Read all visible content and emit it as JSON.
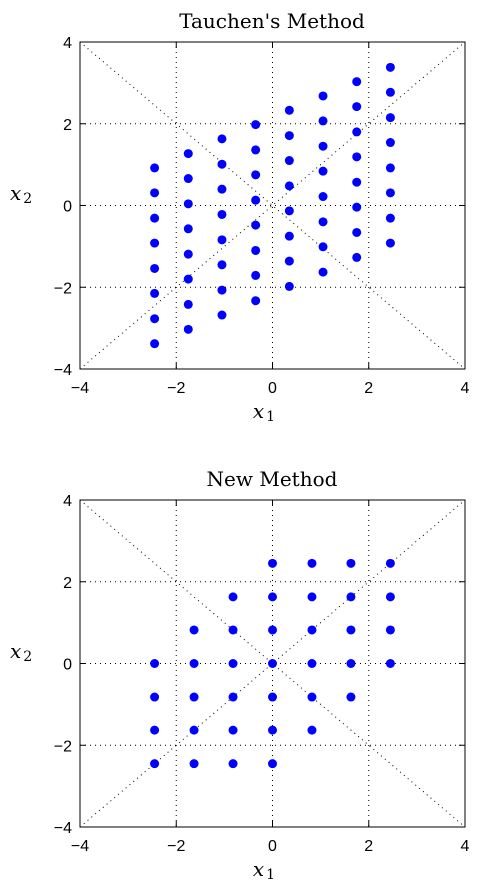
{
  "chart_data": [
    {
      "type": "scatter",
      "title": "Tauchen's Method",
      "xlabel": "x",
      "xlabel_sub": "1",
      "ylabel": "x",
      "ylabel_sub": "2",
      "xlim": [
        -4,
        4
      ],
      "ylim": [
        -4,
        4
      ],
      "xticks": [
        "−4",
        "−2",
        "0",
        "2",
        "4"
      ],
      "yticks": [
        "−4",
        "−2",
        "0",
        "2",
        "4"
      ],
      "grid": true,
      "color": "#0000ff",
      "diagonals": true,
      "points": [
        [
          -2.45,
          0.92
        ],
        [
          -2.45,
          0.31
        ],
        [
          -2.45,
          -0.31
        ],
        [
          -2.45,
          -0.92
        ],
        [
          -2.45,
          -1.54
        ],
        [
          -2.45,
          -2.15
        ],
        [
          -2.45,
          -2.77
        ],
        [
          -2.45,
          -3.38
        ],
        [
          -1.75,
          1.27
        ],
        [
          -1.75,
          0.66
        ],
        [
          -1.75,
          0.04
        ],
        [
          -1.75,
          -0.57
        ],
        [
          -1.75,
          -1.19
        ],
        [
          -1.75,
          -1.8
        ],
        [
          -1.75,
          -2.42
        ],
        [
          -1.75,
          -3.03
        ],
        [
          -1.05,
          1.63
        ],
        [
          -1.05,
          1.01
        ],
        [
          -1.05,
          0.4
        ],
        [
          -1.05,
          -0.22
        ],
        [
          -1.05,
          -0.84
        ],
        [
          -1.05,
          -1.45
        ],
        [
          -1.05,
          -2.07
        ],
        [
          -1.05,
          -2.68
        ],
        [
          -0.35,
          1.98
        ],
        [
          -0.35,
          1.36
        ],
        [
          -0.35,
          0.75
        ],
        [
          -0.35,
          0.13
        ],
        [
          -0.35,
          -0.48
        ],
        [
          -0.35,
          -1.1
        ],
        [
          -0.35,
          -1.71
        ],
        [
          -0.35,
          -2.33
        ],
        [
          0.35,
          2.33
        ],
        [
          0.35,
          1.71
        ],
        [
          0.35,
          1.1
        ],
        [
          0.35,
          0.48
        ],
        [
          0.35,
          -0.13
        ],
        [
          0.35,
          -0.75
        ],
        [
          0.35,
          -1.36
        ],
        [
          0.35,
          -1.98
        ],
        [
          1.05,
          2.68
        ],
        [
          1.05,
          2.07
        ],
        [
          1.05,
          1.45
        ],
        [
          1.05,
          0.84
        ],
        [
          1.05,
          0.22
        ],
        [
          1.05,
          -0.4
        ],
        [
          1.05,
          -1.01
        ],
        [
          1.05,
          -1.63
        ],
        [
          1.75,
          3.03
        ],
        [
          1.75,
          2.42
        ],
        [
          1.75,
          1.8
        ],
        [
          1.75,
          1.19
        ],
        [
          1.75,
          0.57
        ],
        [
          1.75,
          -0.04
        ],
        [
          1.75,
          -0.66
        ],
        [
          1.75,
          -1.27
        ],
        [
          2.45,
          3.38
        ],
        [
          2.45,
          2.77
        ],
        [
          2.45,
          2.15
        ],
        [
          2.45,
          1.54
        ],
        [
          2.45,
          0.92
        ],
        [
          2.45,
          0.31
        ],
        [
          2.45,
          -0.31
        ],
        [
          2.45,
          -0.92
        ]
      ]
    },
    {
      "type": "scatter",
      "title": "New Method",
      "xlabel": "x",
      "xlabel_sub": "1",
      "ylabel": "x",
      "ylabel_sub": "2",
      "xlim": [
        -4,
        4
      ],
      "ylim": [
        -4,
        4
      ],
      "xticks": [
        "−4",
        "−2",
        "0",
        "2",
        "4"
      ],
      "yticks": [
        "−4",
        "−2",
        "0",
        "2",
        "4"
      ],
      "grid": true,
      "color": "#0000ff",
      "diagonals": true,
      "points": [
        [
          -2.45,
          0
        ],
        [
          -2.45,
          -0.82
        ],
        [
          -2.45,
          -1.63
        ],
        [
          -2.45,
          -2.45
        ],
        [
          -1.63,
          0.82
        ],
        [
          -1.63,
          0
        ],
        [
          -1.63,
          -0.82
        ],
        [
          -1.63,
          -1.63
        ],
        [
          -1.63,
          -2.45
        ],
        [
          -0.82,
          1.63
        ],
        [
          -0.82,
          0.82
        ],
        [
          -0.82,
          0
        ],
        [
          -0.82,
          -0.82
        ],
        [
          -0.82,
          -1.63
        ],
        [
          -0.82,
          -2.45
        ],
        [
          0,
          2.45
        ],
        [
          0,
          1.63
        ],
        [
          0,
          0.82
        ],
        [
          0,
          0
        ],
        [
          0,
          -0.82
        ],
        [
          0,
          -1.63
        ],
        [
          0,
          -2.45
        ],
        [
          0.82,
          2.45
        ],
        [
          0.82,
          1.63
        ],
        [
          0.82,
          0.82
        ],
        [
          0.82,
          0
        ],
        [
          0.82,
          -0.82
        ],
        [
          0.82,
          -1.63
        ],
        [
          1.63,
          2.45
        ],
        [
          1.63,
          1.63
        ],
        [
          1.63,
          0.82
        ],
        [
          1.63,
          0
        ],
        [
          1.63,
          -0.82
        ],
        [
          2.45,
          2.45
        ],
        [
          2.45,
          1.63
        ],
        [
          2.45,
          0.82
        ],
        [
          2.45,
          0
        ]
      ]
    }
  ]
}
